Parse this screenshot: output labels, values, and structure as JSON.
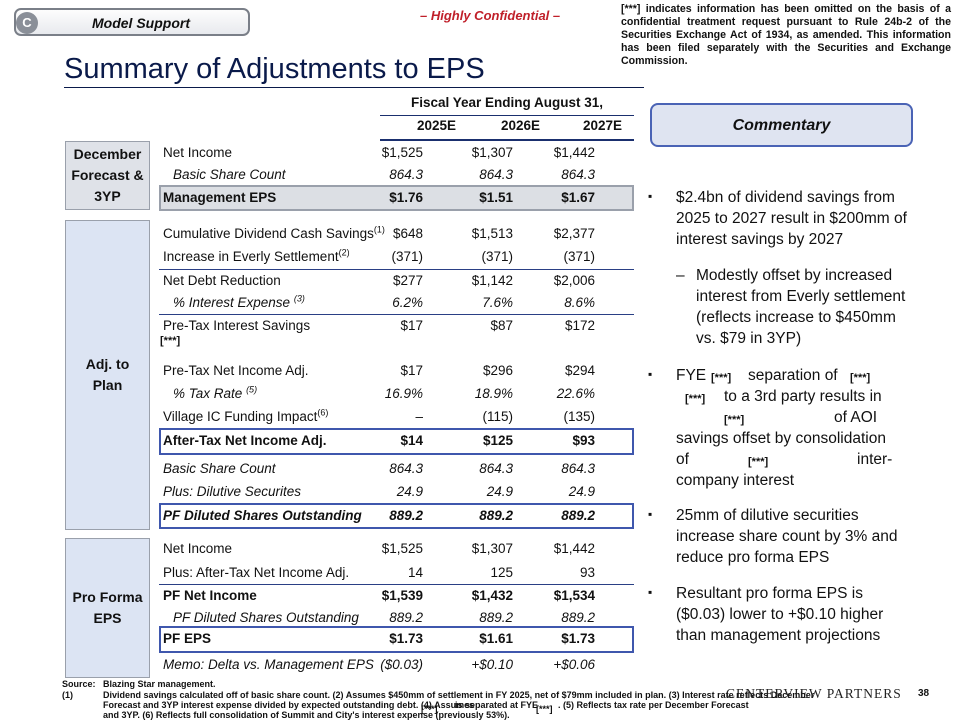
{
  "header": {
    "tag_letter": "C",
    "tag_label": "Model Support",
    "confidential": "– Highly Confidential –",
    "disclaimer": "[***] indicates information has been omitted on the basis of a confidential treatment request pursuant to Rule 24b-2 of the Securities Exchange Act of 1934, as amended. This information has been filed separately with the Securities and Exchange Commission."
  },
  "title": "Summary of Adjustments to EPS",
  "table": {
    "period_header": "Fiscal Year Ending August 31,",
    "years": [
      "2025E",
      "2026E",
      "2027E"
    ],
    "groups": {
      "forecast": "December Forecast & 3YP",
      "adj": "Adj. to Plan",
      "pro_forma": "Pro Forma EPS"
    },
    "rows": {
      "ni": {
        "label": "Net Income",
        "values": [
          "$1,525",
          "$1,307",
          "$1,442"
        ]
      },
      "bsc": {
        "label": "Basic Share Count",
        "values": [
          "864.3",
          "864.3",
          "864.3"
        ]
      },
      "meps": {
        "label": "Management EPS",
        "values": [
          "$1.76",
          "$1.51",
          "$1.67"
        ]
      },
      "cdcs": {
        "label": "Cumulative Dividend Cash Savings",
        "sup": "(1)",
        "values": [
          "$648",
          "$1,513",
          "$2,377"
        ]
      },
      "ies": {
        "label": "Increase in Everly Settlement",
        "sup": "(2)",
        "values": [
          "(371)",
          "(371)",
          "(371)"
        ]
      },
      "ndr": {
        "label": "Net Debt Reduction",
        "values": [
          "$277",
          "$1,142",
          "$2,006"
        ]
      },
      "pie": {
        "label": "% Interest Expense",
        "sup": "(3)",
        "values": [
          "6.2%",
          "7.6%",
          "8.6%"
        ]
      },
      "ptis": {
        "label": "Pre-Tax Interest Savings",
        "note": "[***]",
        "values": [
          "$17",
          "$87",
          "$172"
        ]
      },
      "ptni": {
        "label": "Pre-Tax Net Income Adj.",
        "values": [
          "$17",
          "$296",
          "$294"
        ]
      },
      "tax": {
        "label": "% Tax Rate",
        "sup": "(5)",
        "values": [
          "16.9%",
          "18.9%",
          "22.6%"
        ]
      },
      "vic": {
        "label": "Village IC Funding Impact",
        "sup": "(6)",
        "values": [
          "–",
          "(115)",
          "(135)"
        ]
      },
      "atni": {
        "label": "After-Tax Net Income Adj.",
        "values": [
          "$14",
          "$125",
          "$93"
        ]
      },
      "bsc2": {
        "label": "Basic Share Count",
        "values": [
          "864.3",
          "864.3",
          "864.3"
        ]
      },
      "dil": {
        "label": "Plus: Dilutive Securites",
        "values": [
          "24.9",
          "24.9",
          "24.9"
        ]
      },
      "pfds": {
        "label": "PF Diluted Shares Outstanding",
        "values": [
          "889.2",
          "889.2",
          "889.2"
        ]
      },
      "ni2": {
        "label": "Net Income",
        "values": [
          "$1,525",
          "$1,307",
          "$1,442"
        ]
      },
      "atna": {
        "label": "Plus: After-Tax Net Income Adj.",
        "values": [
          "14",
          "125",
          "93"
        ]
      },
      "pfni": {
        "label": "PF Net Income",
        "values": [
          "$1,539",
          "$1,432",
          "$1,534"
        ]
      },
      "pfds2": {
        "label": "PF Diluted Shares Outstanding",
        "values": [
          "889.2",
          "889.2",
          "889.2"
        ]
      },
      "pfeps": {
        "label": "PF EPS",
        "values": [
          "$1.73",
          "$1.61",
          "$1.73"
        ]
      },
      "memo": {
        "label": "Memo: Delta vs. Management EPS",
        "values": [
          "($0.03)",
          "+$0.10",
          "+$0.06"
        ]
      }
    }
  },
  "commentary": {
    "title": "Commentary",
    "bullet_marker": "▪",
    "dash_marker": "–",
    "b1": "$2.4bn of dividend savings from 2025 to 2027 result in $200mm of interest savings by 2027",
    "b1_sub": "Modestly offset by increased interest from Everly settlement (reflects increase to $450mm vs. $79 in 3YP)",
    "b2_l1a": "FYE",
    "b2_r": "[***]",
    "b2_l1b": "separation of",
    "b2_l2": "to a 3rd party results in",
    "b2_l3": "of AOI",
    "b2_l4": "savings offset by consolidation",
    "b2_l5a": "of",
    "b2_l5b": "inter-",
    "b2_l6": "company interest",
    "b3": "25mm of dilutive securities increase share count by 3% and reduce pro forma EPS",
    "b4": "Resultant pro forma EPS is ($0.03) lower to +$0.10 higher than management projections"
  },
  "footer": {
    "source_label": "Source:",
    "source_text": "Blazing Star management.",
    "fn_label": "(1)",
    "fn_line1": "Dividend savings calculated off of basic share count. (2) Assumes $450mm of settlement in FY 2025, net of $79mm included in plan. (3) Interest rate reflects December",
    "fn_line2a": "Forecast and 3YP interest expense divided by expected outstanding debt. (4) Assumes",
    "fn_redact": "[***]",
    "fn_line2b": "is separated at FYE",
    "fn_line2c": ". (5) Reflects tax rate per December Forecast",
    "fn_line3": "and 3YP. (6) Reflects full consolidation of Summit and City's interest expense (previously 53%).",
    "logo": "CENTERVIEW PARTNERS",
    "page": "38"
  }
}
